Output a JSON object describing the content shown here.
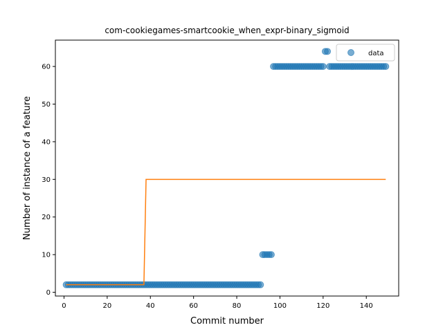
{
  "chart_data": {
    "type": "scatter",
    "title": "com-cookiegames-smartcookie_when_expr-binary_sigmoid",
    "xlabel": "Commit number",
    "ylabel": "Number of instance of a feature",
    "xlim": [
      -4,
      155
    ],
    "ylim": [
      -1,
      67
    ],
    "xticks": [
      0,
      20,
      40,
      60,
      80,
      100,
      120,
      140
    ],
    "yticks": [
      0,
      10,
      20,
      30,
      40,
      50,
      60
    ],
    "grid": false,
    "legend": {
      "position": "top-right",
      "entries": [
        "data"
      ]
    },
    "series": [
      {
        "name": "data",
        "kind": "scatter",
        "color": "#1f77b4",
        "segments": [
          {
            "x_start": 1,
            "x_end": 91,
            "y": 2
          },
          {
            "x_start": 92,
            "x_end": 96,
            "y": 10
          },
          {
            "x_start": 97,
            "x_end": 120,
            "y": 60
          },
          {
            "x_start": 121,
            "x_end": 122,
            "y": 64
          },
          {
            "x_start": 123,
            "x_end": 149,
            "y": 60
          }
        ]
      },
      {
        "kind": "line",
        "color": "#ff7f0e",
        "points": [
          [
            1,
            2
          ],
          [
            37,
            2
          ],
          [
            38,
            30
          ],
          [
            149,
            30
          ]
        ]
      }
    ]
  }
}
